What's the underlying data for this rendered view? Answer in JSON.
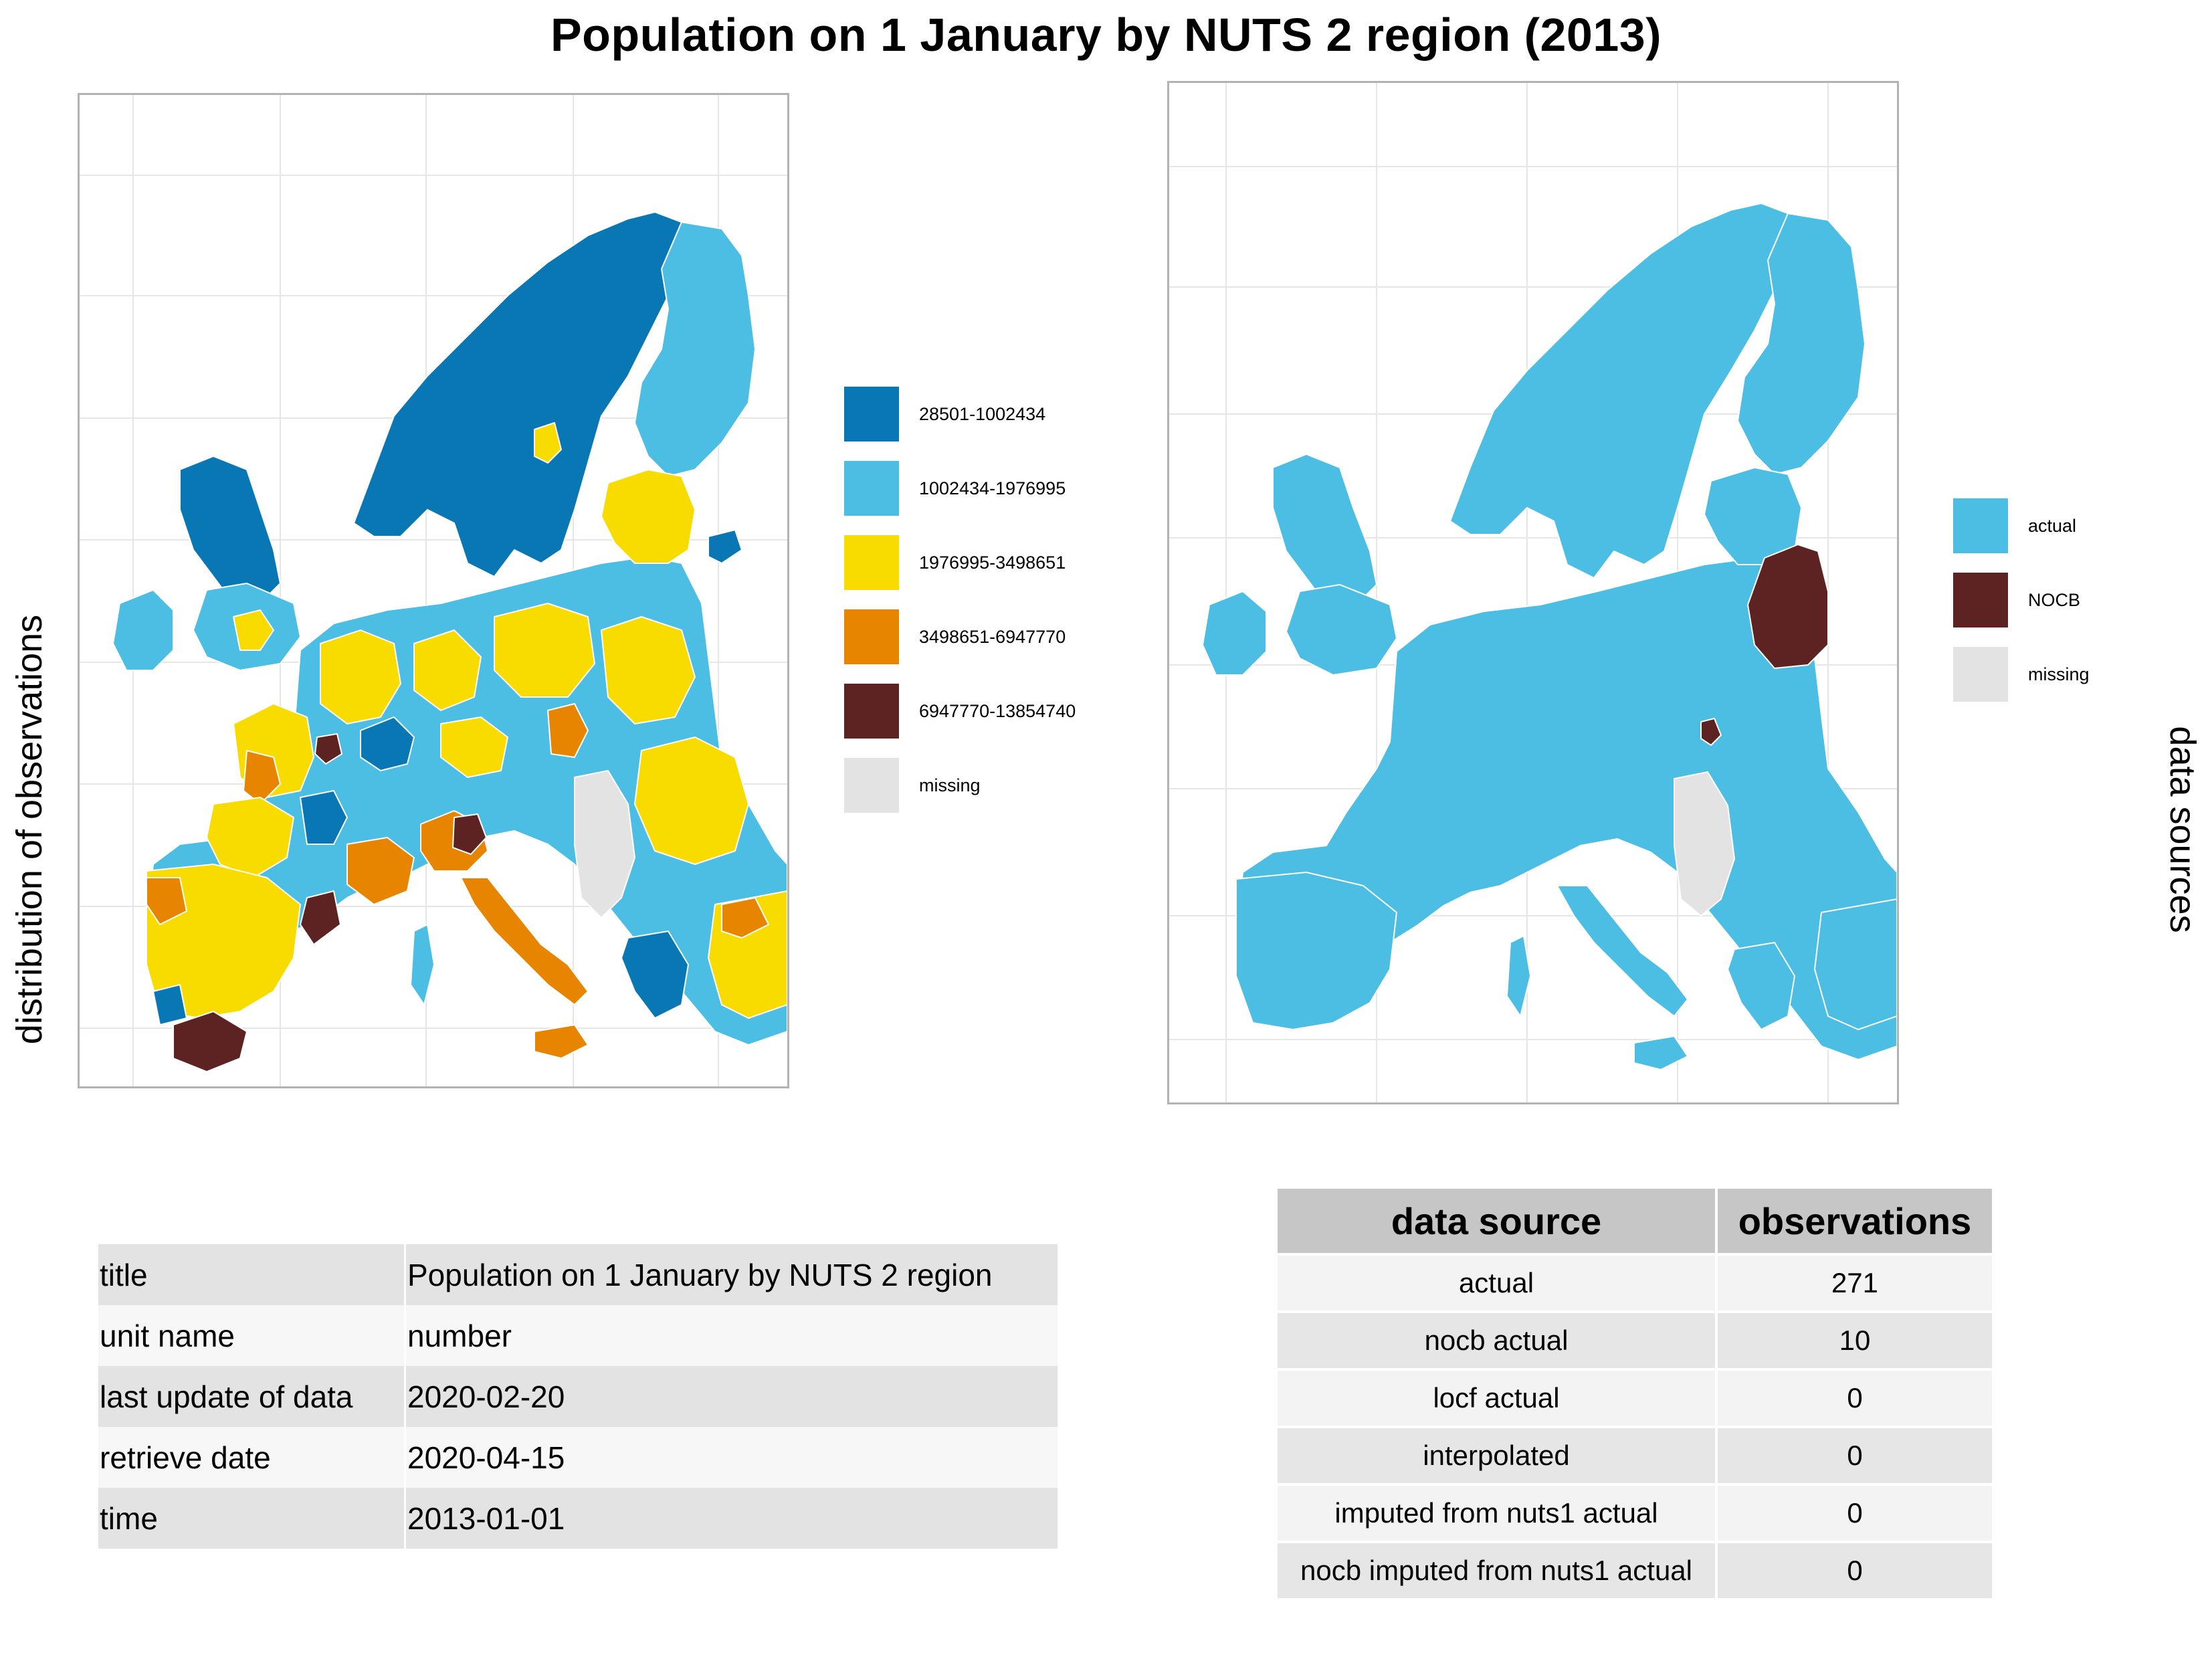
{
  "title": "Population on 1 January by NUTS 2 region (2013)",
  "left_map": {
    "side_label": "distribution of observations",
    "legend": [
      {
        "label": "28501-1002434",
        "color": "#0a77b5"
      },
      {
        "label": "1002434-1976995",
        "color": "#4cbde3"
      },
      {
        "label": "1976995-3498651",
        "color": "#f8dc00"
      },
      {
        "label": "3498651-6947770",
        "color": "#e78500"
      },
      {
        "label": "6947770-13854740",
        "color": "#5c2322"
      },
      {
        "label": "missing",
        "color": "#e3e3e3"
      }
    ]
  },
  "right_map": {
    "side_label": "data sources",
    "legend": [
      {
        "label": "actual",
        "color": "#4cbde3"
      },
      {
        "label": "NOCB",
        "color": "#5c2322"
      },
      {
        "label": "missing",
        "color": "#e3e3e3"
      }
    ]
  },
  "metadata_table": [
    {
      "key": "title",
      "value": "Population on 1 January by NUTS 2 region"
    },
    {
      "key": "unit name",
      "value": "number"
    },
    {
      "key": "last update of data",
      "value": "2020-02-20"
    },
    {
      "key": "retrieve date",
      "value": "2020-04-15"
    },
    {
      "key": "time",
      "value": "2013-01-01"
    }
  ],
  "source_table": {
    "headers": [
      "data source",
      "observations"
    ],
    "rows": [
      {
        "source": "actual",
        "observations": "271"
      },
      {
        "source": "nocb actual",
        "observations": "10"
      },
      {
        "source": "locf actual",
        "observations": "0"
      },
      {
        "source": "interpolated",
        "observations": "0"
      },
      {
        "source": "imputed from nuts1 actual",
        "observations": "0"
      },
      {
        "source": "nocb imputed from nuts1 actual",
        "observations": "0"
      }
    ]
  }
}
